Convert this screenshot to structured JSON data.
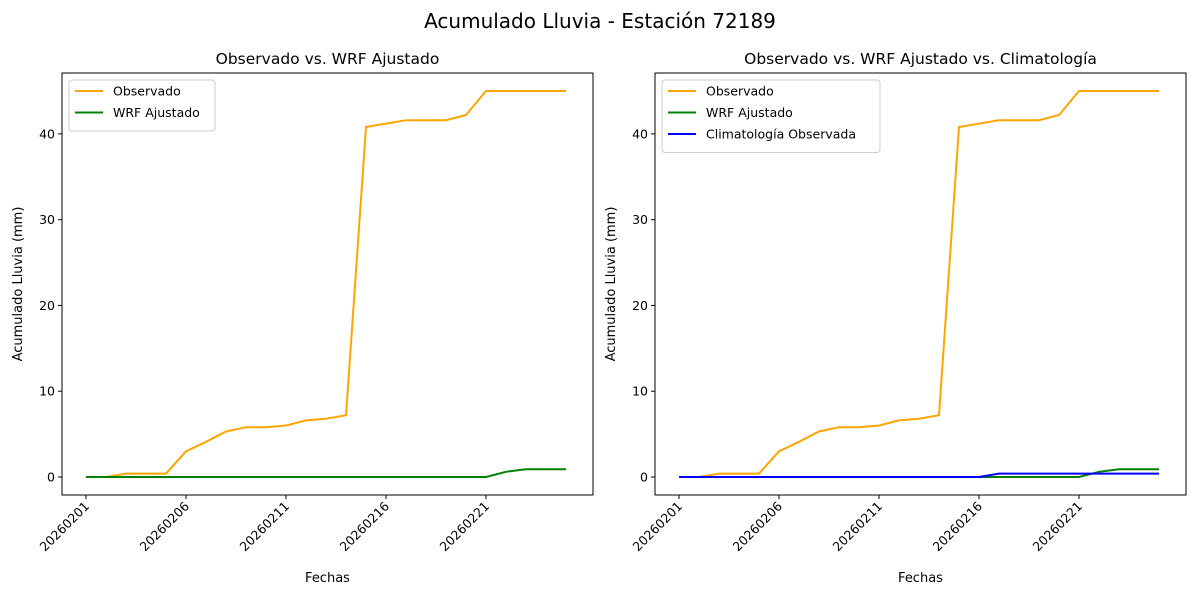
{
  "suptitle": "Acumulado Lluvia - Estación 72189",
  "chart_data": [
    {
      "type": "line",
      "title": "Observado vs. WRF Ajustado",
      "xlabel": "Fechas",
      "ylabel": "Acumulado Lluvia (mm)",
      "x": [
        "20260201",
        "20260202",
        "20260203",
        "20260204",
        "20260205",
        "20260206",
        "20260207",
        "20260208",
        "20260209",
        "20260210",
        "20260211",
        "20260212",
        "20260213",
        "20260214",
        "20260215",
        "20260216",
        "20260217",
        "20260218",
        "20260219",
        "20260220",
        "20260221",
        "20260222",
        "20260223",
        "20260224",
        "20260225"
      ],
      "xticks": [
        "20260201",
        "20260206",
        "20260211",
        "20260216",
        "20260221"
      ],
      "yticks": [
        0,
        10,
        20,
        30,
        40
      ],
      "ylim": [
        -2.1,
        47.1
      ],
      "legend": "upper-left",
      "series": [
        {
          "name": "Observado",
          "color": "#ffa500",
          "values": [
            0,
            0,
            0.4,
            0.4,
            0.4,
            3.0,
            4.1,
            5.3,
            5.8,
            5.8,
            6.0,
            6.6,
            6.8,
            7.2,
            40.8,
            41.2,
            41.6,
            41.6,
            41.6,
            42.2,
            45.0,
            45.0,
            45.0,
            45.0,
            45.0
          ]
        },
        {
          "name": "WRF Ajustado",
          "color": "#008000",
          "values": [
            0,
            0,
            0,
            0,
            0,
            0,
            0,
            0,
            0,
            0,
            0,
            0,
            0,
            0,
            0,
            0,
            0,
            0,
            0,
            0,
            0,
            0.6,
            0.9,
            0.9,
            0.9
          ]
        }
      ]
    },
    {
      "type": "line",
      "title": "Observado vs. WRF Ajustado vs. Climatología",
      "xlabel": "Fechas",
      "ylabel": "Acumulado Lluvia (mm)",
      "x": [
        "20260201",
        "20260202",
        "20260203",
        "20260204",
        "20260205",
        "20260206",
        "20260207",
        "20260208",
        "20260209",
        "20260210",
        "20260211",
        "20260212",
        "20260213",
        "20260214",
        "20260215",
        "20260216",
        "20260217",
        "20260218",
        "20260219",
        "20260220",
        "20260221",
        "20260222",
        "20260223",
        "20260224",
        "20260225"
      ],
      "xticks": [
        "20260201",
        "20260206",
        "20260211",
        "20260216",
        "20260221"
      ],
      "yticks": [
        0,
        10,
        20,
        30,
        40
      ],
      "ylim": [
        -2.1,
        47.1
      ],
      "legend": "upper-left",
      "series": [
        {
          "name": "Observado",
          "color": "#ffa500",
          "values": [
            0,
            0,
            0.4,
            0.4,
            0.4,
            3.0,
            4.1,
            5.3,
            5.8,
            5.8,
            6.0,
            6.6,
            6.8,
            7.2,
            40.8,
            41.2,
            41.6,
            41.6,
            41.6,
            42.2,
            45.0,
            45.0,
            45.0,
            45.0,
            45.0
          ]
        },
        {
          "name": "WRF Ajustado",
          "color": "#008000",
          "values": [
            0,
            0,
            0,
            0,
            0,
            0,
            0,
            0,
            0,
            0,
            0,
            0,
            0,
            0,
            0,
            0,
            0,
            0,
            0,
            0,
            0,
            0.6,
            0.9,
            0.9,
            0.9
          ]
        },
        {
          "name": "Climatología Observada",
          "color": "#0000ff",
          "values": [
            0,
            0,
            0,
            0,
            0,
            0,
            0,
            0,
            0,
            0,
            0,
            0,
            0,
            0,
            0,
            0,
            0.4,
            0.4,
            0.4,
            0.4,
            0.4,
            0.4,
            0.4,
            0.4,
            0.4
          ]
        }
      ]
    }
  ]
}
